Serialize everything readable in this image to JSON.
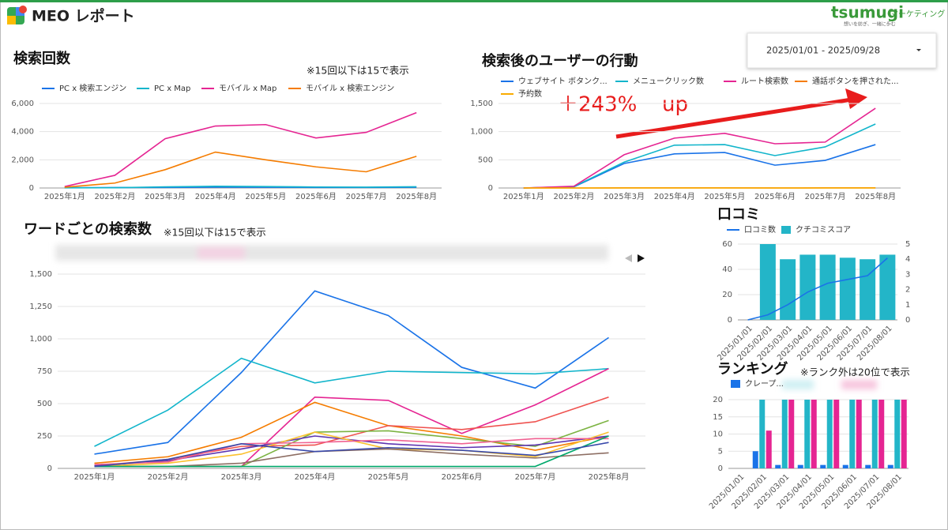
{
  "header": {
    "title": "MEO レポート",
    "brand": "tsumugi",
    "brand_sub": "マーケティング",
    "tagline": "想いを紡ぎ、一緒に歩む",
    "date_range": "2025/01/01 - 2025/09/28"
  },
  "chart_data": [
    {
      "type": "line",
      "title": "検索回数",
      "note": "※15回以下は15で表示",
      "grid": true,
      "categories": [
        "2025年1月",
        "2025年2月",
        "2025年3月",
        "2025年4月",
        "2025年5月",
        "2025年6月",
        "2025年7月",
        "2025年8月"
      ],
      "ylim": [
        0,
        6000
      ],
      "yticks": [
        0,
        {
          "value": 2000,
          "label": "2,000"
        },
        {
          "value": 4000,
          "label": "4,000"
        },
        {
          "value": 6000,
          "label": "6,000"
        }
      ],
      "series": [
        {
          "name": "PC x 検索エンジン",
          "color": "#1a73e8",
          "values": [
            20,
            30,
            40,
            60,
            50,
            40,
            40,
            50
          ]
        },
        {
          "name": "PC x Map",
          "color": "#12b5cb",
          "values": [
            10,
            20,
            80,
            120,
            100,
            70,
            60,
            90
          ]
        },
        {
          "name": "モバイル x Map",
          "color": "#e52592",
          "values": [
            100,
            900,
            3500,
            4400,
            4500,
            3550,
            3950,
            5350
          ]
        },
        {
          "name": "モバイル x 検索エンジン",
          "color": "#f57c00",
          "values": [
            50,
            350,
            1300,
            2550,
            2000,
            1500,
            1150,
            2250
          ]
        }
      ]
    },
    {
      "type": "line",
      "title": "検索後のユーザーの行動",
      "annotations": [
        "＋243%",
        "up"
      ],
      "grid": true,
      "categories": [
        "2025年1月",
        "2025年2月",
        "2025年3月",
        "2025年4月",
        "2025年5月",
        "2025年6月",
        "2025年7月",
        "2025年8月"
      ],
      "ylim": [
        0,
        1500
      ],
      "yticks": [
        0,
        500,
        {
          "value": 1000,
          "label": "1,000"
        },
        {
          "value": 1500,
          "label": "1,500"
        }
      ],
      "series": [
        {
          "name": "ウェブサイト ボタンク...",
          "color": "#1a73e8",
          "values": [
            0,
            20,
            435,
            605,
            630,
            405,
            490,
            770
          ]
        },
        {
          "name": "メニュークリック数",
          "color": "#12b5cb",
          "values": [
            0,
            25,
            460,
            760,
            770,
            575,
            730,
            1135
          ]
        },
        {
          "name": "ルート検索数",
          "color": "#e52592",
          "values": [
            0,
            30,
            590,
            885,
            970,
            785,
            815,
            1415
          ]
        },
        {
          "name": "通話ボタンを押された...",
          "color": "#f57c00",
          "values": [
            0,
            0,
            2,
            3,
            2,
            1,
            2,
            3
          ]
        },
        {
          "name": "予約数",
          "color": "#f9ab00",
          "values": [
            0,
            0,
            0,
            0,
            0,
            0,
            0,
            0
          ]
        }
      ]
    },
    {
      "type": "line",
      "title": "ワードごとの検索数",
      "note": "※15回以下は15で表示",
      "grid": true,
      "categories": [
        "2025年1月",
        "2025年2月",
        "2025年3月",
        "2025年4月",
        "2025年5月",
        "2025年6月",
        "2025年7月",
        "2025年8月"
      ],
      "ylim": [
        0,
        1500
      ],
      "yticks": [
        0,
        250,
        500,
        750,
        {
          "value": 1000,
          "label": "1,000"
        },
        {
          "value": 1250,
          "label": "1,250"
        },
        {
          "value": 1500,
          "label": "1,500"
        }
      ],
      "series": [
        {
          "color": "#1a73e8",
          "values": [
            110,
            200,
            740,
            1370,
            1180,
            780,
            620,
            1010
          ]
        },
        {
          "color": "#12b5cb",
          "values": [
            170,
            450,
            850,
            660,
            750,
            740,
            730,
            770
          ]
        },
        {
          "color": "#e52592",
          "values": [
            15,
            15,
            15,
            550,
            525,
            270,
            490,
            770
          ]
        },
        {
          "color": "#f57c00",
          "values": [
            40,
            90,
            240,
            510,
            330,
            250,
            140,
            250
          ]
        },
        {
          "color": "#ef5350",
          "values": [
            20,
            70,
            170,
            180,
            330,
            300,
            360,
            550
          ]
        },
        {
          "color": "#7cb342",
          "values": [
            15,
            15,
            15,
            280,
            290,
            230,
            170,
            370
          ]
        },
        {
          "color": "#5e35b1",
          "values": [
            20,
            60,
            150,
            250,
            190,
            160,
            180,
            250
          ]
        },
        {
          "color": "#fbc02d",
          "values": [
            15,
            40,
            110,
            280,
            150,
            140,
            90,
            280
          ]
        },
        {
          "color": "#f06292",
          "values": [
            30,
            50,
            190,
            200,
            220,
            190,
            230,
            230
          ]
        },
        {
          "color": "#8d6e63",
          "values": [
            15,
            15,
            40,
            130,
            150,
            110,
            80,
            120
          ]
        },
        {
          "color": "#00a86b",
          "values": [
            15,
            15,
            15,
            15,
            15,
            15,
            15,
            250
          ]
        },
        {
          "color": "#3949ab",
          "values": [
            15,
            70,
            190,
            130,
            160,
            140,
            100,
            200
          ]
        }
      ]
    },
    {
      "type": "combo",
      "title": "口コミ",
      "grid": true,
      "categories": [
        "2025/01/01",
        "2025/02/01",
        "2025/03/01",
        "2025/04/01",
        "2025/05/01",
        "2025/06/01",
        "2025/07/01",
        "2025/08/01"
      ],
      "ylim": [
        0,
        60
      ],
      "yticks": [
        0,
        20,
        40,
        60
      ],
      "y2lim": [
        0,
        5
      ],
      "y2ticks": [
        0,
        1,
        2,
        3,
        4,
        5
      ],
      "series": [
        {
          "name": "口コミ数",
          "type": "line",
          "color": "#1a73e8",
          "values": [
            0,
            4,
            12,
            22,
            29,
            32,
            35,
            49
          ]
        },
        {
          "name": "クチコミスコア",
          "type": "bar",
          "axis": "y2",
          "color": "#23b5c8",
          "values": [
            null,
            5,
            4.0,
            4.3,
            4.3,
            4.1,
            4.0,
            4.3
          ]
        }
      ]
    },
    {
      "type": "bar",
      "title": "ランキング",
      "note": "※ランク外は20位で表示",
      "grid": true,
      "categories": [
        "2025/01/01",
        "2025/02/01",
        "2025/03/01",
        "2025/04/01",
        "2025/05/01",
        "2025/06/01",
        "2025/07/01",
        "2025/08/01"
      ],
      "ylim": [
        0,
        20
      ],
      "yticks": [
        0,
        5,
        10,
        15,
        20
      ],
      "series": [
        {
          "name": "クレープ...",
          "color": "#1a73e8",
          "values": [
            null,
            5,
            1,
            1,
            1,
            1,
            1,
            1
          ]
        },
        {
          "color": "#23b5c8",
          "values": [
            null,
            20,
            20,
            20,
            20,
            20,
            20,
            20
          ]
        },
        {
          "color": "#e52592",
          "values": [
            null,
            11,
            20,
            20,
            20,
            20,
            20,
            20
          ]
        }
      ]
    }
  ]
}
